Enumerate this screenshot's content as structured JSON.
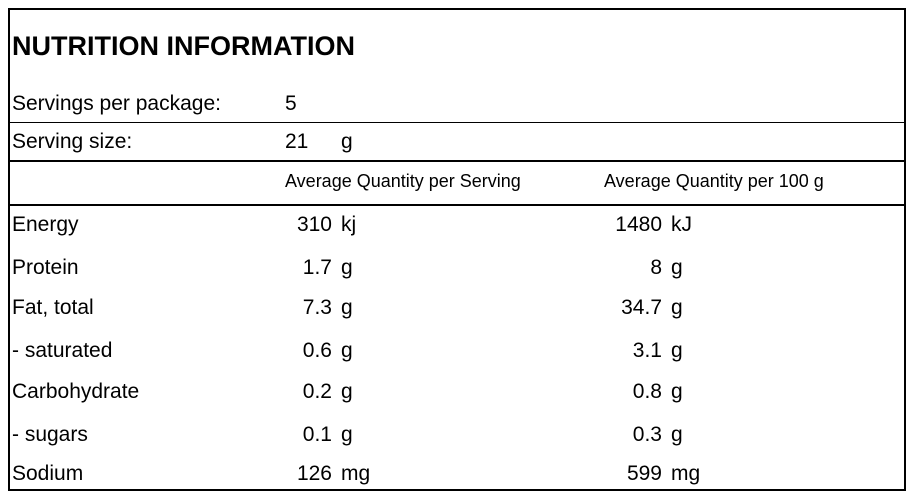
{
  "panel": {
    "title": "NUTRITION INFORMATION",
    "servings_label": "Servings per package:",
    "servings_value": "5",
    "serving_size_label": "Serving size:",
    "serving_size_value": "21",
    "serving_size_unit": "g"
  },
  "columns": {
    "per_serving": "Average Quantity per Serving",
    "per_100g": "Average Quantity per 100 g"
  },
  "rows": [
    {
      "name": "Energy",
      "serving": "310",
      "serving_unit": "kj",
      "per100": "1480",
      "per100_unit": "kJ"
    },
    {
      "name": "Protein",
      "serving": "1.7",
      "serving_unit": "g",
      "per100": "8",
      "per100_unit": "g"
    },
    {
      "name": "Fat, total",
      "serving": "7.3",
      "serving_unit": "g",
      "per100": "34.7",
      "per100_unit": "g"
    },
    {
      "name": "- saturated",
      "serving": "0.6",
      "serving_unit": "g",
      "per100": "3.1",
      "per100_unit": "g"
    },
    {
      "name": "Carbohydrate",
      "serving": "0.2",
      "serving_unit": "g",
      "per100": "0.8",
      "per100_unit": "g"
    },
    {
      "name": "- sugars",
      "serving": "0.1",
      "serving_unit": "g",
      "per100": "0.3",
      "per100_unit": "g"
    },
    {
      "name": "Sodium",
      "serving": "126",
      "serving_unit": "mg",
      "per100": "599",
      "per100_unit": "mg"
    }
  ]
}
